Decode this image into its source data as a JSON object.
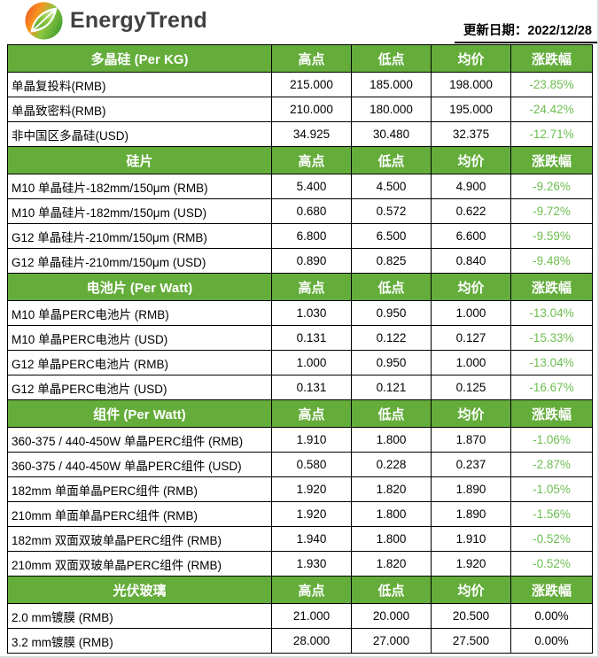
{
  "page": {
    "brand": "EnergyTrend",
    "update_date_label": "更新日期：",
    "update_date": "2022/12/28"
  },
  "colors": {
    "section_header_bg": "#64AD3B",
    "negative_change_text": "#6EBE51"
  },
  "table": {
    "column_headers": [
      "高点",
      "低点",
      "均价",
      "涨跌幅"
    ],
    "sections": [
      {
        "title": "多晶硅 (Per KG)",
        "rows": [
          {
            "label": "单晶复投料(RMB)",
            "high": "215.000",
            "low": "185.000",
            "avg": "198.000",
            "change": "-23.85%"
          },
          {
            "label": "单晶致密料(RMB)",
            "high": "210.000",
            "low": "180.000",
            "avg": "195.000",
            "change": "-24.42%"
          },
          {
            "label": "非中国区多晶硅(USD)",
            "high": "34.925",
            "low": "30.480",
            "avg": "32.375",
            "change": "-12.71%"
          }
        ]
      },
      {
        "title": "硅片",
        "rows": [
          {
            "label": "M10 单晶硅片-182mm/150μm (RMB)",
            "high": "5.400",
            "low": "4.500",
            "avg": "4.900",
            "change": "-9.26%"
          },
          {
            "label": "M10 单晶硅片-182mm/150μm (USD)",
            "high": "0.680",
            "low": "0.572",
            "avg": "0.622",
            "change": "-9.72%"
          },
          {
            "label": "G12 单晶硅片-210mm/150μm  (RMB)",
            "high": "6.800",
            "low": "6.500",
            "avg": "6.600",
            "change": "-9.59%"
          },
          {
            "label": "G12 单晶硅片-210mm/150μm  (USD)",
            "high": "0.890",
            "low": "0.825",
            "avg": "0.840",
            "change": "-9.48%"
          }
        ]
      },
      {
        "title": "电池片 (Per Watt)",
        "rows": [
          {
            "label": "M10 单晶PERC电池片 (RMB)",
            "high": "1.030",
            "low": "0.950",
            "avg": "1.000",
            "change": "-13.04%"
          },
          {
            "label": "M10 单晶PERC电池片 (USD)",
            "high": "0.131",
            "low": "0.122",
            "avg": "0.127",
            "change": "-15.33%"
          },
          {
            "label": "G12 单晶PERC电池片 (RMB)",
            "high": "1.000",
            "low": "0.950",
            "avg": "1.000",
            "change": "-13.04%"
          },
          {
            "label": "G12 单晶PERC电池片 (USD)",
            "high": "0.131",
            "low": "0.121",
            "avg": "0.125",
            "change": "-16.67%"
          }
        ]
      },
      {
        "title": "组件 (Per Watt)",
        "rows": [
          {
            "label": "360-375 / 440-450W 单晶PERC组件 (RMB)",
            "high": "1.910",
            "low": "1.800",
            "avg": "1.870",
            "change": "-1.06%"
          },
          {
            "label": "360-375 / 440-450W 单晶PERC组件 (USD)",
            "high": "0.580",
            "low": "0.228",
            "avg": "0.237",
            "change": "-2.87%"
          },
          {
            "label": "182mm 单面单晶PERC组件 (RMB)",
            "high": "1.920",
            "low": "1.820",
            "avg": "1.890",
            "change": "-1.05%"
          },
          {
            "label": "210mm 单面单晶PERC组件 (RMB)",
            "high": "1.920",
            "low": "1.800",
            "avg": "1.890",
            "change": "-1.56%"
          },
          {
            "label": "182mm 双面双玻单晶PERC组件 (RMB)",
            "high": "1.940",
            "low": "1.800",
            "avg": "1.910",
            "change": "-0.52%"
          },
          {
            "label": "210mm 双面双玻单晶PERC组件 (RMB)",
            "high": "1.930",
            "low": "1.820",
            "avg": "1.920",
            "change": "-0.52%"
          }
        ]
      },
      {
        "title": "光伏玻璃",
        "rows": [
          {
            "label": "2.0 mm镀膜 (RMB)",
            "high": "21.000",
            "low": "20.000",
            "avg": "20.500",
            "change": "0.00%"
          },
          {
            "label": "3.2 mm镀膜 (RMB)",
            "high": "28.000",
            "low": "27.000",
            "avg": "27.500",
            "change": "0.00%"
          }
        ]
      }
    ]
  }
}
